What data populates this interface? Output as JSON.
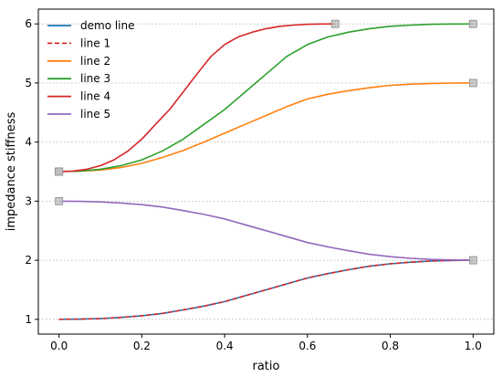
{
  "chart_data": {
    "type": "line",
    "title": "",
    "xlabel": "ratio",
    "ylabel": "impedance stiffness",
    "xlim": [
      -0.05,
      1.05
    ],
    "ylim": [
      0.75,
      6.25
    ],
    "x_ticks": [
      {
        "value": 0.0,
        "label": "0.0"
      },
      {
        "value": 0.2,
        "label": "0.2"
      },
      {
        "value": 0.4,
        "label": "0.4"
      },
      {
        "value": 0.6,
        "label": "0.6"
      },
      {
        "value": 0.8,
        "label": "0.8"
      },
      {
        "value": 1.0,
        "label": "1.0"
      }
    ],
    "y_ticks": [
      {
        "value": 1,
        "label": "1"
      },
      {
        "value": 2,
        "label": "2"
      },
      {
        "value": 3,
        "label": "3"
      },
      {
        "value": 4,
        "label": "4"
      },
      {
        "value": 5,
        "label": "5"
      },
      {
        "value": 6,
        "label": "6"
      }
    ],
    "grid": {
      "y": true,
      "x": false,
      "style": "dotted",
      "color": "#b0b0b0"
    },
    "legend_position": "top-left",
    "series": [
      {
        "name": "demo line",
        "color": "#1f77b4",
        "dash": "solid",
        "marker": "",
        "x": [
          0.0,
          0.05,
          0.1,
          0.15,
          0.2,
          0.25,
          0.3,
          0.35,
          0.4,
          0.45,
          0.5,
          0.55,
          0.6,
          0.65,
          0.7,
          0.75,
          0.8,
          0.85,
          0.9,
          0.95,
          1.0
        ],
        "y": [
          1.0,
          1.004,
          1.013,
          1.032,
          1.06,
          1.1,
          1.16,
          1.225,
          1.3,
          1.4,
          1.5,
          1.6,
          1.7,
          1.775,
          1.84,
          1.9,
          1.94,
          1.968,
          1.987,
          1.996,
          2.0
        ]
      },
      {
        "name": "line 1",
        "color": "#d62728",
        "dash": "dashed",
        "marker": "",
        "x": [
          0.0,
          0.05,
          0.1,
          0.15,
          0.2,
          0.25,
          0.3,
          0.35,
          0.4,
          0.45,
          0.5,
          0.55,
          0.6,
          0.65,
          0.7,
          0.75,
          0.8,
          0.85,
          0.9,
          0.95,
          1.0
        ],
        "y": [
          1.0,
          1.004,
          1.013,
          1.032,
          1.06,
          1.1,
          1.16,
          1.225,
          1.3,
          1.4,
          1.5,
          1.6,
          1.7,
          1.775,
          1.84,
          1.9,
          1.94,
          1.968,
          1.987,
          1.996,
          2.0
        ]
      },
      {
        "name": "line 2",
        "color": "#ff7f0e",
        "dash": "solid",
        "marker": "square",
        "x": [
          0.0,
          0.05,
          0.1,
          0.15,
          0.2,
          0.25,
          0.3,
          0.35,
          0.4,
          0.45,
          0.5,
          0.55,
          0.6,
          0.65,
          0.7,
          0.75,
          0.8,
          0.85,
          0.9,
          0.95,
          1.0
        ],
        "y": [
          3.5,
          3.507,
          3.527,
          3.57,
          3.64,
          3.74,
          3.86,
          4.0,
          4.15,
          4.3,
          4.45,
          4.6,
          4.73,
          4.81,
          4.87,
          4.92,
          4.96,
          4.98,
          4.993,
          4.998,
          5.0
        ]
      },
      {
        "name": "line 3",
        "color": "#2ca02c",
        "dash": "solid",
        "marker": "square",
        "x": [
          0.0,
          0.05,
          0.1,
          0.15,
          0.2,
          0.25,
          0.3,
          0.35,
          0.4,
          0.45,
          0.5,
          0.55,
          0.6,
          0.65,
          0.7,
          0.75,
          0.8,
          0.85,
          0.9,
          0.95,
          1.0
        ],
        "y": [
          3.5,
          3.51,
          3.54,
          3.6,
          3.7,
          3.85,
          4.05,
          4.3,
          4.55,
          4.85,
          5.15,
          5.45,
          5.65,
          5.78,
          5.86,
          5.92,
          5.96,
          5.98,
          5.993,
          5.998,
          6.0
        ]
      },
      {
        "name": "line 4",
        "color": "#d62728",
        "dash": "solid",
        "marker": "square",
        "x": [
          0.0,
          0.033,
          0.067,
          0.1,
          0.133,
          0.167,
          0.2,
          0.233,
          0.267,
          0.3,
          0.333,
          0.367,
          0.4,
          0.433,
          0.467,
          0.5,
          0.533,
          0.567,
          0.6,
          0.633,
          0.667
        ],
        "y": [
          3.5,
          3.51,
          3.54,
          3.6,
          3.7,
          3.85,
          4.05,
          4.3,
          4.55,
          4.85,
          5.15,
          5.45,
          5.65,
          5.78,
          5.86,
          5.92,
          5.96,
          5.98,
          5.993,
          5.998,
          6.0
        ]
      },
      {
        "name": "line 5",
        "color": "#9467bd",
        "dash": "solid",
        "marker": "square",
        "x": [
          0.0,
          0.05,
          0.1,
          0.15,
          0.2,
          0.25,
          0.3,
          0.35,
          0.4,
          0.45,
          0.5,
          0.55,
          0.6,
          0.65,
          0.7,
          0.75,
          0.8,
          0.85,
          0.9,
          0.95,
          1.0
        ],
        "y": [
          3.0,
          2.996,
          2.987,
          2.968,
          2.94,
          2.9,
          2.84,
          2.775,
          2.7,
          2.6,
          2.5,
          2.4,
          2.3,
          2.225,
          2.16,
          2.1,
          2.06,
          2.032,
          2.013,
          2.004,
          2.0
        ]
      }
    ],
    "endpoint_markers": {
      "color": "#bfbfbf",
      "edge": "#8c8c8c",
      "shape": "square"
    }
  }
}
